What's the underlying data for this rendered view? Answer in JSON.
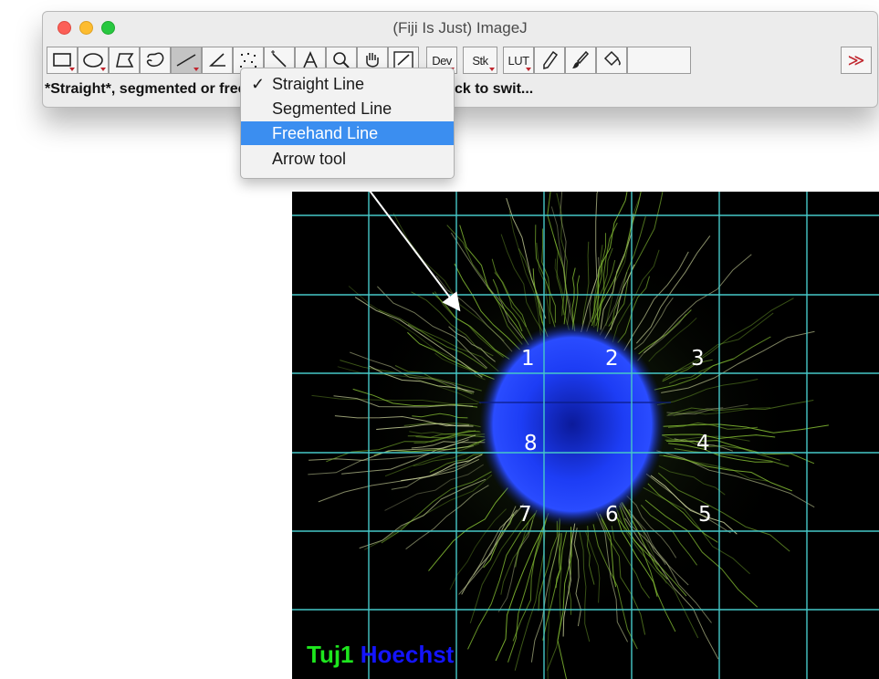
{
  "window": {
    "title": "(Fiji Is Just) ImageJ"
  },
  "toolbar": {
    "tools": [
      {
        "icon": "rectangle-tool-icon"
      },
      {
        "icon": "oval-tool-icon"
      },
      {
        "icon": "polygon-tool-icon"
      },
      {
        "icon": "freehand-selection-icon"
      },
      {
        "icon": "straight-line-tool-icon"
      },
      {
        "icon": "angle-tool-icon"
      },
      {
        "icon": "multipoint-tool-icon"
      },
      {
        "icon": "wand-tool-icon"
      },
      {
        "icon": "text-tool-icon"
      },
      {
        "icon": "magnifier-tool-icon"
      },
      {
        "icon": "hand-tool-icon"
      },
      {
        "icon": "color-picker-icon"
      }
    ],
    "dev_label": "Dev",
    "stk_label": "Stk",
    "lut_label": "LUT",
    "more_label": "≫"
  },
  "status_text": "*Straight*, segmented or freehand lines, or arrows (right click to swit...",
  "line_menu": {
    "items": [
      {
        "label": "Straight Line",
        "checked": "✓"
      },
      {
        "label": "Segmented Line",
        "checked": ""
      },
      {
        "label": "Freehand Line",
        "checked": ""
      },
      {
        "label": "Arrow tool",
        "checked": ""
      }
    ],
    "highlighted_index": 2
  },
  "image": {
    "region_labels": [
      "1",
      "2",
      "3",
      "4",
      "5",
      "6",
      "7",
      "8"
    ],
    "legend": {
      "green": "Tuj1",
      "blue": "Hoechst"
    },
    "colors": {
      "grid": "#46c8c8",
      "nucleus": "#1a3cff",
      "neurites": "#9adc3c",
      "legend_green": "#1ee61e",
      "legend_blue": "#1414ff"
    }
  }
}
